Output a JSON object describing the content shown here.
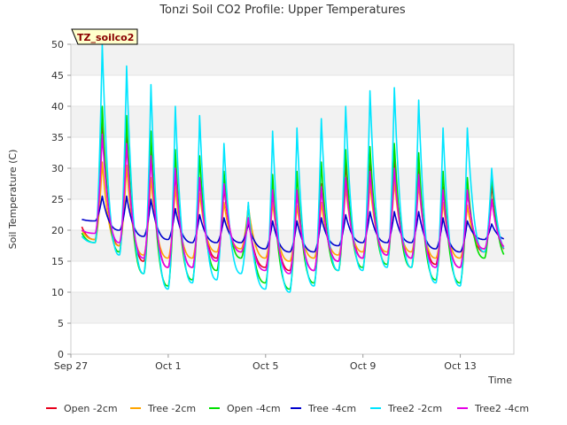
{
  "chart_data": {
    "type": "line",
    "title": "Tonzi Soil CO2 Profile: Upper Temperatures",
    "xlabel": "Time",
    "ylabel": "Soil Temperature (C)",
    "site_tag": "TZ_soilco2",
    "ylim": [
      0,
      50
    ],
    "yticks": [
      0,
      5,
      10,
      15,
      20,
      25,
      30,
      35,
      40,
      45,
      50
    ],
    "xlim_days": [
      0,
      18.2
    ],
    "xticks": [
      {
        "day": 0,
        "label": "Sep 27"
      },
      {
        "day": 4,
        "label": "Oct 1"
      },
      {
        "day": 8,
        "label": "Oct 5"
      },
      {
        "day": 12,
        "label": "Oct 9"
      },
      {
        "day": 16,
        "label": "Oct 13"
      }
    ],
    "grid": "horizontal bands",
    "legend_position": "bottom",
    "series": [
      {
        "name": "Open -2cm",
        "color": "#e8001c",
        "daily": {
          "max": [
            22.5,
            37.0,
            35.5,
            33.0,
            29.5,
            28.5,
            27.0,
            22.0,
            26.0,
            26.5,
            27.5,
            31.0,
            31.5,
            32.0,
            30.0,
            27.0,
            26.5,
            27.5
          ],
          "min": [
            20.5,
            18.5,
            17.5,
            15.0,
            14.0,
            14.0,
            15.5,
            16.5,
            14.0,
            13.5,
            13.5,
            15.0,
            15.5,
            16.0,
            15.5,
            14.5,
            14.0,
            16.5
          ]
        }
      },
      {
        "name": "Tree -2cm",
        "color": "#ffa500",
        "daily": {
          "max": [
            21.5,
            31.0,
            30.5,
            28.5,
            27.0,
            26.0,
            24.5,
            24.0,
            24.5,
            24.0,
            24.5,
            27.0,
            27.5,
            28.0,
            27.5,
            24.5,
            24.0,
            25.0
          ],
          "min": [
            20.5,
            18.5,
            17.5,
            16.0,
            15.5,
            15.5,
            16.5,
            17.0,
            15.5,
            15.0,
            15.5,
            16.0,
            16.5,
            16.5,
            16.5,
            15.5,
            15.5,
            17.0
          ]
        }
      },
      {
        "name": "Open -4cm",
        "color": "#00e000",
        "daily": {
          "max": [
            21.0,
            40.0,
            38.5,
            36.0,
            33.0,
            32.0,
            29.5,
            24.0,
            29.0,
            29.5,
            31.0,
            33.0,
            33.5,
            34.0,
            32.5,
            29.5,
            28.5,
            29.0
          ],
          "min": [
            18.5,
            18.0,
            16.5,
            13.0,
            11.0,
            12.0,
            13.5,
            15.5,
            11.5,
            10.5,
            11.5,
            13.5,
            14.0,
            14.5,
            14.0,
            12.0,
            11.5,
            15.5
          ]
        }
      },
      {
        "name": "Tree -4cm",
        "color": "#0000cd",
        "daily": {
          "max": [
            22.0,
            25.5,
            25.5,
            25.0,
            23.5,
            22.5,
            22.0,
            21.0,
            21.5,
            21.5,
            22.0,
            22.5,
            23.0,
            23.0,
            23.0,
            22.0,
            21.5,
            21.0
          ],
          "min": [
            21.0,
            21.5,
            20.0,
            19.0,
            18.5,
            18.0,
            18.0,
            18.0,
            17.0,
            16.5,
            16.5,
            17.5,
            18.0,
            18.0,
            18.0,
            17.0,
            16.5,
            18.5
          ]
        }
      },
      {
        "name": "Tree2 -2cm",
        "color": "#00e5ff",
        "daily": {
          "max": [
            20.0,
            50.0,
            46.5,
            43.5,
            40.0,
            38.5,
            34.0,
            24.5,
            36.0,
            36.5,
            38.0,
            40.0,
            42.5,
            43.0,
            41.0,
            36.5,
            36.5,
            30.0
          ],
          "min": [
            17.5,
            18.0,
            16.0,
            13.0,
            10.5,
            11.5,
            12.0,
            13.0,
            10.5,
            10.0,
            11.0,
            13.5,
            13.5,
            14.0,
            14.0,
            11.5,
            11.0,
            16.5
          ]
        }
      },
      {
        "name": "Tree2 -4cm",
        "color": "#e600e6",
        "daily": {
          "max": [
            20.5,
            35.5,
            34.0,
            32.0,
            30.0,
            28.5,
            27.5,
            22.0,
            26.5,
            26.5,
            27.0,
            28.5,
            29.5,
            30.0,
            29.0,
            26.5,
            26.5,
            25.0
          ],
          "min": [
            19.0,
            19.5,
            18.0,
            15.5,
            14.0,
            14.0,
            15.0,
            16.5,
            13.5,
            13.0,
            13.5,
            15.0,
            15.5,
            16.0,
            15.5,
            14.0,
            14.0,
            17.0
          ]
        }
      }
    ]
  }
}
